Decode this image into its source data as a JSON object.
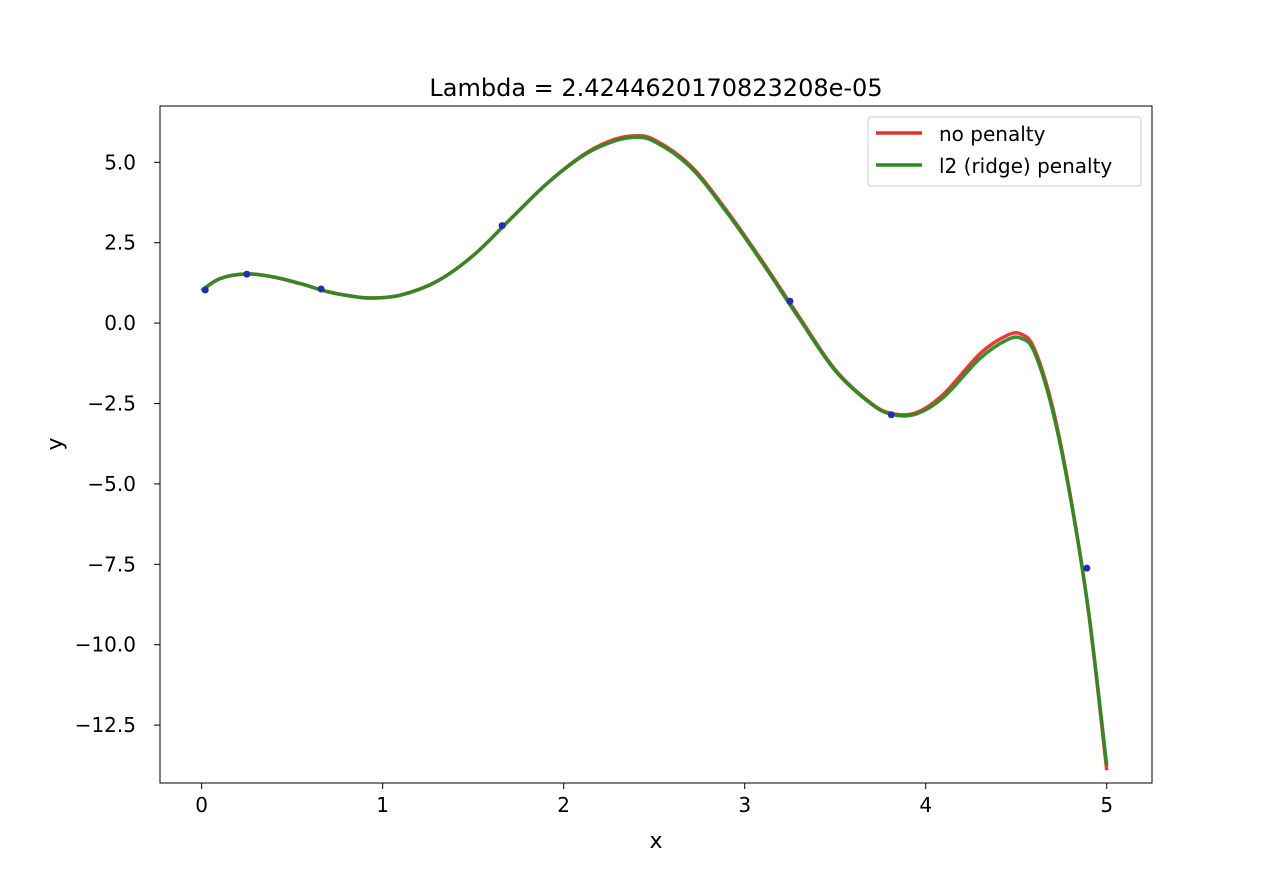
{
  "chart_data": {
    "type": "line",
    "title": "Lambda = 2.4244620170823208e-05",
    "xlabel": "x",
    "ylabel": "y",
    "xlim": [
      -0.23,
      5.25
    ],
    "ylim": [
      -14.3,
      6.75
    ],
    "xticks": [
      0,
      1,
      2,
      3,
      4,
      5
    ],
    "yticks": [
      5.0,
      2.5,
      0.0,
      -2.5,
      -5.0,
      -7.5,
      -10.0,
      -12.5
    ],
    "xtick_labels": [
      "0",
      "1",
      "2",
      "3",
      "4",
      "5"
    ],
    "ytick_labels": [
      "5.0",
      "2.5",
      "0.0",
      "−2.5",
      "−5.0",
      "−7.5",
      "−10.0",
      "−12.5"
    ],
    "grid": false,
    "legend_position": "top-right",
    "series": [
      {
        "name": "no penalty",
        "color": "#e8302a",
        "x": [
          0.0,
          0.1,
          0.25,
          0.4,
          0.55,
          0.7,
          0.85,
          0.95,
          1.1,
          1.3,
          1.5,
          1.7,
          1.9,
          2.1,
          2.25,
          2.38,
          2.5,
          2.7,
          2.9,
          3.1,
          3.3,
          3.5,
          3.7,
          3.82,
          3.95,
          4.1,
          4.3,
          4.45,
          4.53,
          4.6,
          4.7,
          4.8,
          4.9,
          5.0
        ],
        "y": [
          1.0,
          1.38,
          1.53,
          1.43,
          1.22,
          0.97,
          0.82,
          0.78,
          0.87,
          1.3,
          2.1,
          3.2,
          4.3,
          5.2,
          5.65,
          5.82,
          5.7,
          4.9,
          3.5,
          1.9,
          0.2,
          -1.45,
          -2.5,
          -2.82,
          -2.78,
          -2.2,
          -0.95,
          -0.38,
          -0.35,
          -0.8,
          -2.6,
          -5.4,
          -9.0,
          -13.9
        ]
      },
      {
        "name": "l2 (ridge) penalty",
        "color": "#2e8a23",
        "x": [
          0.0,
          0.1,
          0.25,
          0.4,
          0.55,
          0.7,
          0.85,
          0.95,
          1.1,
          1.3,
          1.5,
          1.7,
          1.9,
          2.1,
          2.25,
          2.38,
          2.5,
          2.7,
          2.9,
          3.1,
          3.3,
          3.5,
          3.7,
          3.82,
          3.95,
          4.1,
          4.3,
          4.45,
          4.53,
          4.6,
          4.7,
          4.8,
          4.9,
          5.0
        ],
        "y": [
          1.02,
          1.38,
          1.53,
          1.43,
          1.22,
          0.97,
          0.82,
          0.78,
          0.87,
          1.3,
          2.1,
          3.2,
          4.3,
          5.18,
          5.6,
          5.77,
          5.65,
          4.85,
          3.45,
          1.85,
          0.15,
          -1.48,
          -2.52,
          -2.85,
          -2.82,
          -2.3,
          -1.1,
          -0.52,
          -0.48,
          -0.9,
          -2.7,
          -5.45,
          -9.0,
          -13.75
        ]
      }
    ],
    "points": {
      "color": "#1f2fb0",
      "x": [
        0.02,
        0.25,
        0.66,
        1.66,
        3.25,
        3.81,
        4.89
      ],
      "y": [
        1.03,
        1.52,
        1.06,
        3.03,
        0.68,
        -2.85,
        -7.62
      ]
    }
  }
}
